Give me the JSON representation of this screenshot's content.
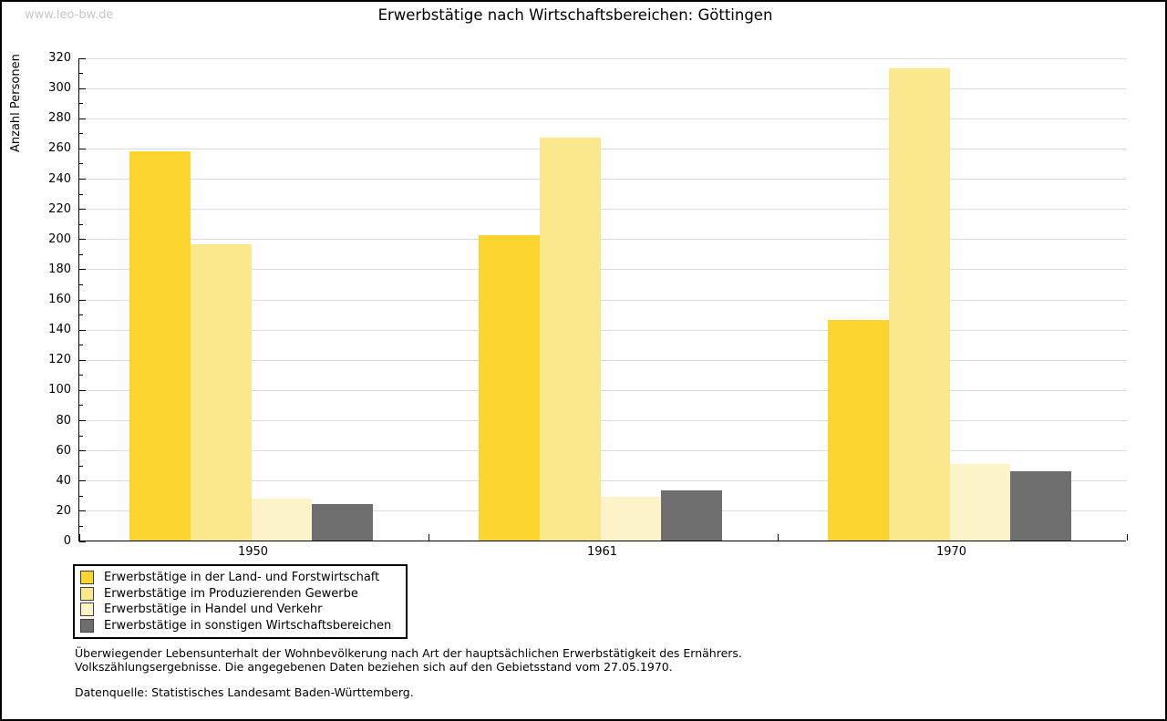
{
  "watermark": "www.leo-bw.de",
  "title": "Erwerbstätige nach Wirtschaftsbereichen: Göttingen",
  "chart_data": {
    "type": "bar",
    "title": "Erwerbstätige nach Wirtschaftsbereichen: Göttingen",
    "xlabel": "",
    "ylabel": "Anzahl Personen",
    "ylim": [
      0,
      320
    ],
    "yticks": [
      0,
      20,
      40,
      60,
      80,
      100,
      120,
      140,
      160,
      180,
      200,
      220,
      240,
      260,
      280,
      300,
      320
    ],
    "minor_tick_step": 10,
    "grid": true,
    "legend_position": "bottom-left",
    "categories": [
      "1950",
      "1961",
      "1970"
    ],
    "series": [
      {
        "name": "Erwerbstätige in der Land- und Forstwirtschaft",
        "color": "#fbd42d",
        "values": [
          258,
          202,
          146
        ]
      },
      {
        "name": "Erwerbstätige im Produzierenden Gewerbe",
        "color": "#fbe88d",
        "values": [
          196,
          267,
          313
        ]
      },
      {
        "name": "Erwerbstätige in Handel und Verkehr",
        "color": "#fcf3c9",
        "values": [
          28,
          29,
          51
        ]
      },
      {
        "name": "Erwerbstätige in sonstigen Wirtschaftsbereichen",
        "color": "#6e6e6e",
        "values": [
          24,
          33,
          46
        ]
      }
    ]
  },
  "footnotes": {
    "line1": "Überwiegender Lebensunterhalt der Wohnbevölkerung nach Art der hauptsächlichen Erwerbstätigkeit des Ernährers.",
    "line2": "Volkszählungsergebnisse. Die angegebenen Daten beziehen sich auf den Gebietsstand vom 27.05.1970.",
    "source": "Datenquelle: Statistisches Landesamt Baden-Württemberg."
  }
}
